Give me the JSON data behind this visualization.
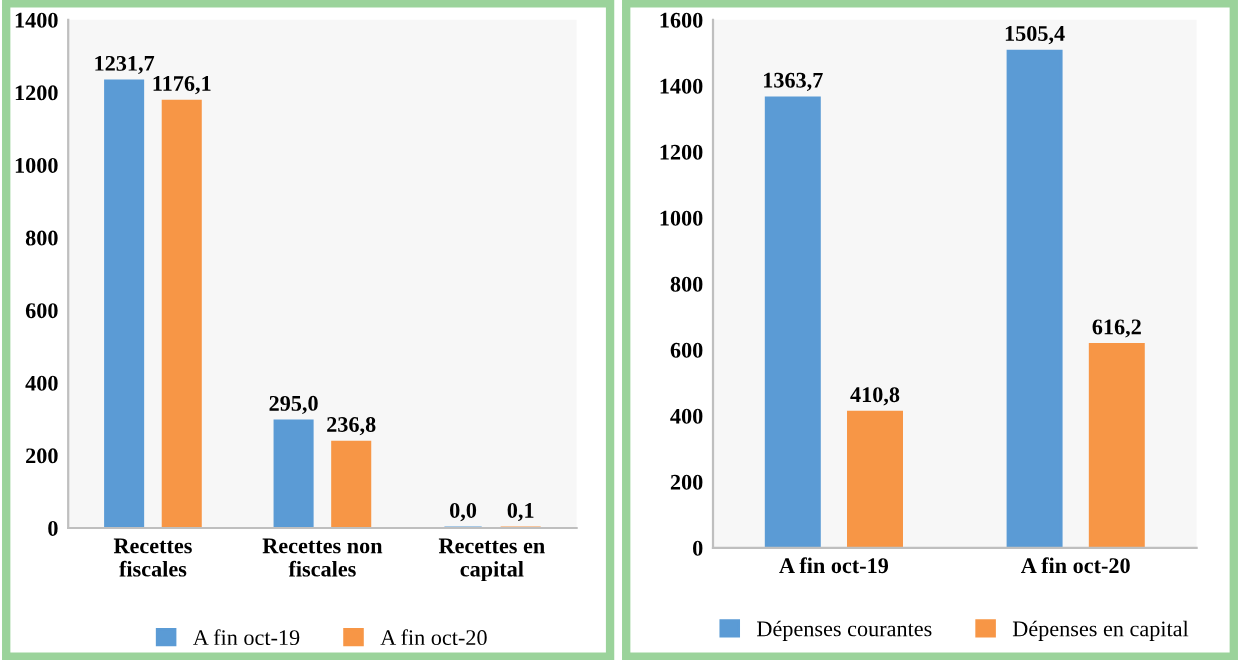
{
  "chart_data": [
    {
      "type": "bar",
      "categories": [
        "Recettes fiscales",
        "Recettes non fiscales",
        "Recettes en capital"
      ],
      "series": [
        {
          "name": "A fin oct-19",
          "color": "#5b9bd5",
          "values": [
            1231.7,
            295.0,
            0.0
          ],
          "value_labels": [
            "1231,7",
            "295,0",
            "0,0"
          ]
        },
        {
          "name": "A fin oct-20",
          "color": "#f79646",
          "values": [
            1176.1,
            236.8,
            0.1
          ],
          "value_labels": [
            "1176,1",
            "236,8",
            "0,1"
          ]
        }
      ],
      "ylim": [
        0,
        1400
      ],
      "yticks": [
        0,
        200,
        400,
        600,
        800,
        1000,
        1200,
        1400
      ],
      "grid": false,
      "legend": "bottom"
    },
    {
      "type": "bar",
      "categories": [
        "A fin oct-19",
        "A fin oct-20"
      ],
      "series": [
        {
          "name": "Dépenses courantes",
          "color": "#5b9bd5",
          "values": [
            1363.7,
            1505.4
          ],
          "value_labels": [
            "1363,7",
            "1505,4"
          ]
        },
        {
          "name": "Dépenses en capital",
          "color": "#f79646",
          "values": [
            410.8,
            616.2
          ],
          "value_labels": [
            "410,8",
            "616,2"
          ]
        }
      ],
      "ylim": [
        0,
        1600
      ],
      "yticks": [
        0,
        200,
        400,
        600,
        800,
        1000,
        1200,
        1400,
        1600
      ],
      "grid": false,
      "legend": "bottom"
    }
  ]
}
